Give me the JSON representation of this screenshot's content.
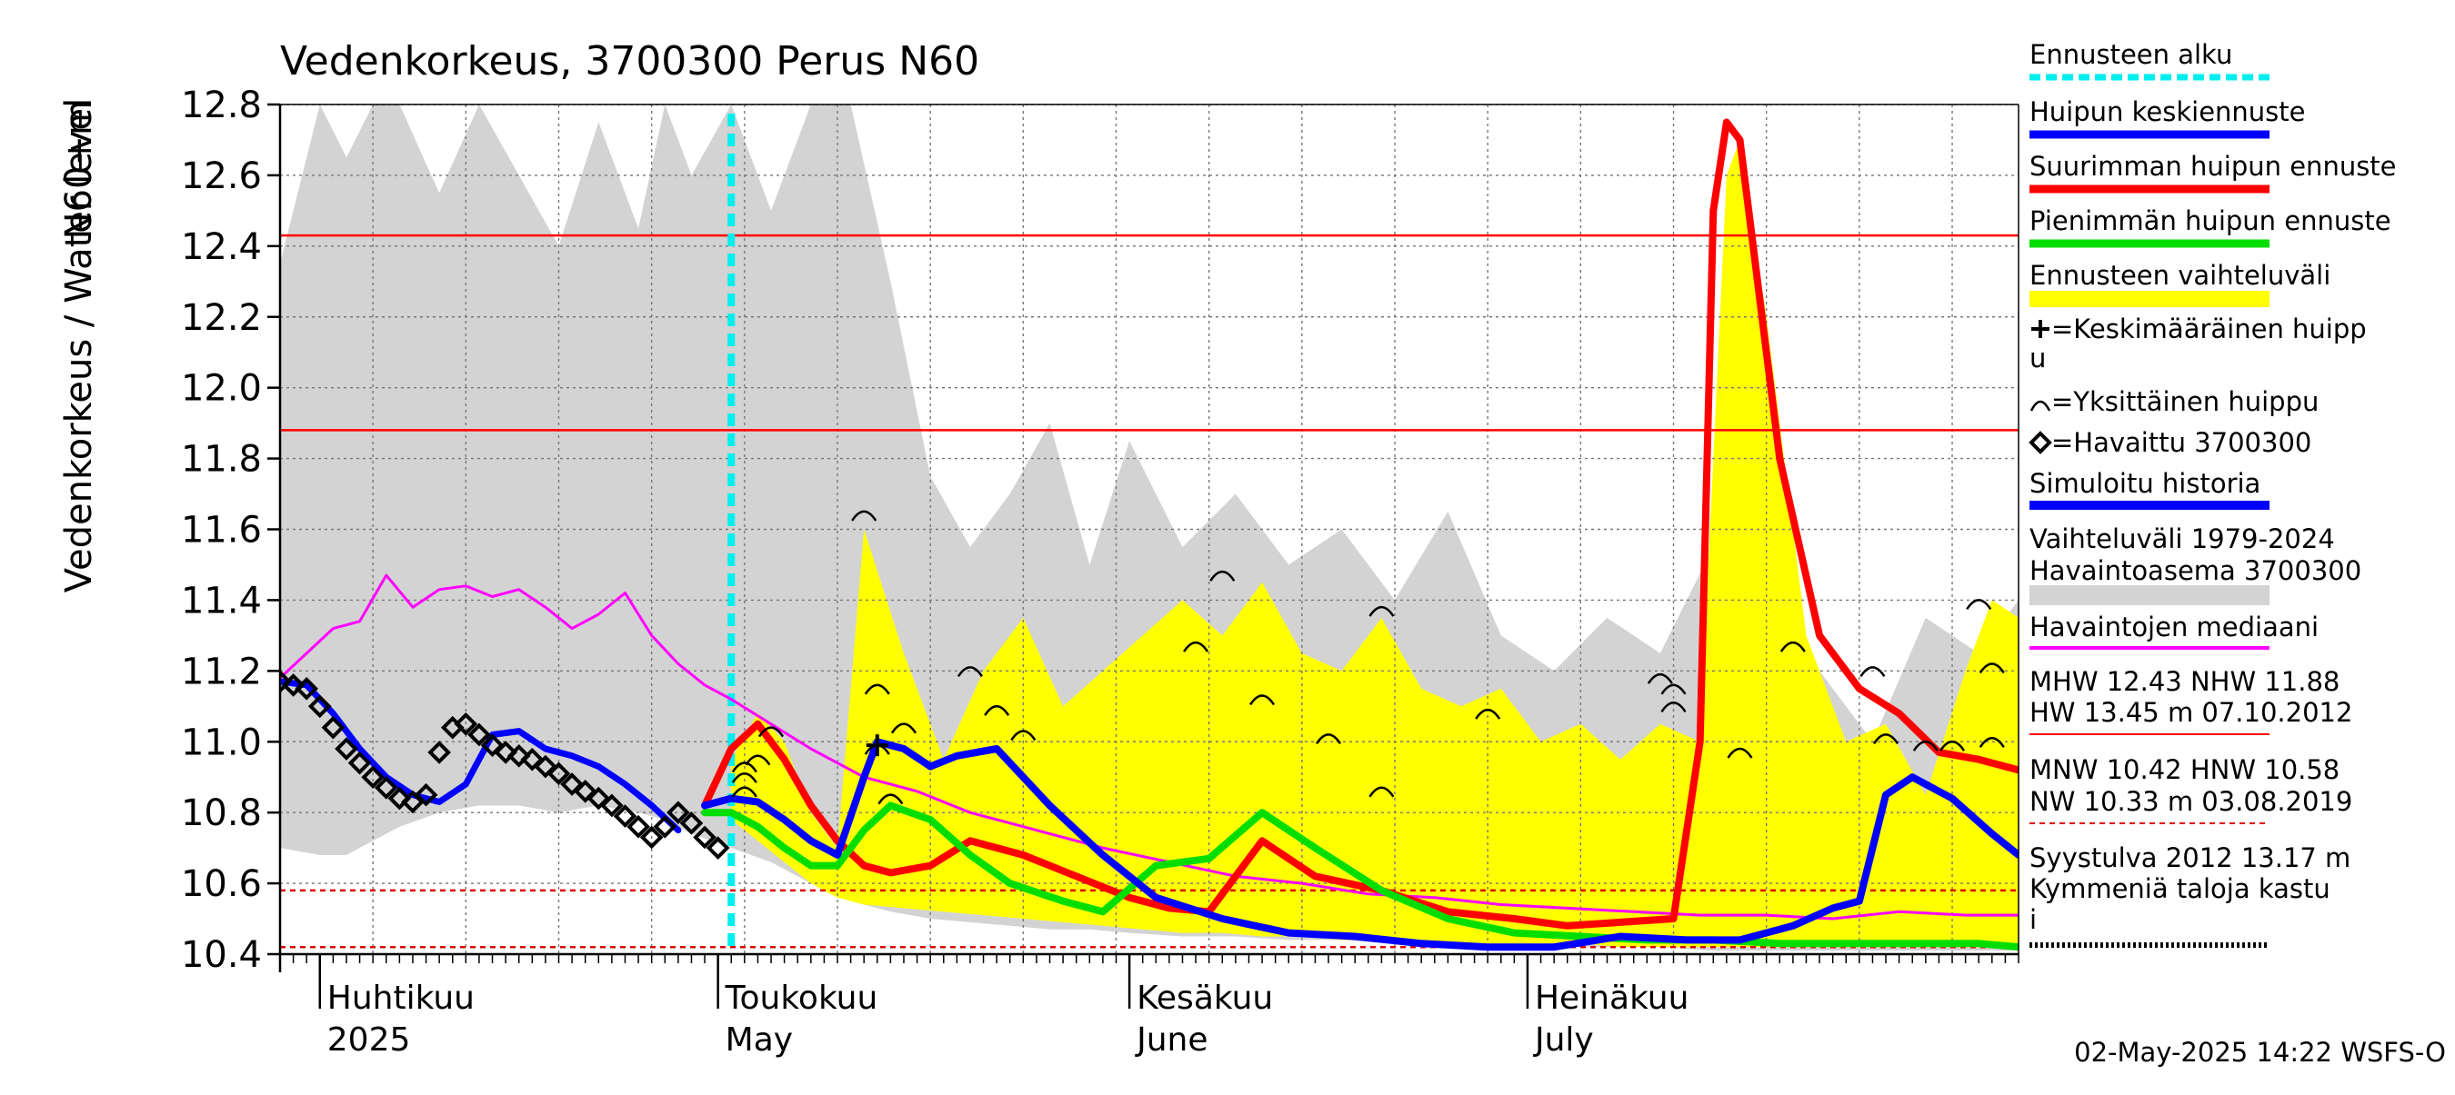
{
  "chart_data": {
    "type": "line",
    "title": "Vedenkorkeus, 3700300 Perus N60",
    "ylabel_left": "Vedenkorkeus / Water level",
    "ylabel_unit": "N60+m",
    "ylim": [
      10.4,
      12.8
    ],
    "xlim": [
      "2025-03-29",
      "2025-08-07"
    ],
    "grid": true,
    "legend_position": "right",
    "y_ticks": [
      "10.4",
      "10.6",
      "10.8",
      "11.0",
      "11.2",
      "11.4",
      "11.6",
      "11.8",
      "12.0",
      "12.2",
      "12.4",
      "12.6",
      "12.8"
    ],
    "month_labels": [
      {
        "date": "2025-04-01",
        "fi": "Huhtikuu",
        "en": "2025"
      },
      {
        "date": "2025-05-01",
        "fi": "Toukokuu",
        "en": "May"
      },
      {
        "date": "2025-06-01",
        "fi": "Kesäkuu",
        "en": "June"
      },
      {
        "date": "2025-07-01",
        "fi": "Heinäkuu",
        "en": "July"
      }
    ],
    "forecast_start": "2025-05-02",
    "reference_lines": [
      {
        "value": 12.43,
        "style": "solid",
        "color": "#ff0000"
      },
      {
        "value": 11.88,
        "style": "solid",
        "color": "#ff0000"
      },
      {
        "value": 10.58,
        "style": "dashed",
        "color": "#dd0000"
      },
      {
        "value": 10.42,
        "style": "dashed",
        "color": "#dd0000"
      }
    ],
    "series": [
      {
        "name": "Vaihteluväli 1979-2024",
        "kind": "band",
        "color": "#d3d3d3",
        "x": [
          "2025-03-29",
          "2025-04-01",
          "2025-04-03",
          "2025-04-05",
          "2025-04-07",
          "2025-04-10",
          "2025-04-13",
          "2025-04-16",
          "2025-04-19",
          "2025-04-22",
          "2025-04-25",
          "2025-04-27",
          "2025-04-29",
          "2025-05-02",
          "2025-05-05",
          "2025-05-08",
          "2025-05-11",
          "2025-05-14",
          "2025-05-17",
          "2025-05-20",
          "2025-05-23",
          "2025-05-26",
          "2025-05-29",
          "2025-06-01",
          "2025-06-05",
          "2025-06-09",
          "2025-06-13",
          "2025-06-17",
          "2025-06-21",
          "2025-06-25",
          "2025-06-29",
          "2025-07-03",
          "2025-07-07",
          "2025-07-11",
          "2025-07-15",
          "2025-07-19",
          "2025-07-23",
          "2025-07-27",
          "2025-07-31",
          "2025-08-04",
          "2025-08-07"
        ],
        "upper": [
          12.35,
          12.8,
          12.65,
          12.8,
          12.8,
          12.55,
          12.8,
          12.6,
          12.4,
          12.75,
          12.45,
          12.8,
          12.6,
          12.8,
          12.5,
          12.8,
          12.8,
          12.3,
          11.75,
          11.55,
          11.7,
          11.9,
          11.5,
          11.85,
          11.55,
          11.7,
          11.5,
          11.6,
          11.4,
          11.65,
          11.3,
          11.2,
          11.35,
          11.25,
          11.55,
          11.45,
          11.2,
          11.0,
          11.35,
          11.25,
          11.4
        ],
        "lower": [
          10.7,
          10.68,
          10.68,
          10.72,
          10.76,
          10.8,
          10.82,
          10.82,
          10.8,
          10.82,
          10.8,
          10.78,
          10.74,
          10.7,
          10.66,
          10.6,
          10.55,
          10.52,
          10.5,
          10.49,
          10.48,
          10.47,
          10.47,
          10.46,
          10.45,
          10.45,
          10.44,
          10.44,
          10.43,
          10.43,
          10.42,
          10.42,
          10.42,
          10.42,
          10.41,
          10.41,
          10.41,
          10.41,
          10.41,
          10.41,
          10.41
        ]
      },
      {
        "name": "Ennusteen vaihteluväli",
        "kind": "band",
        "color": "#ffff00",
        "x": [
          "2025-05-02",
          "2025-05-04",
          "2025-05-06",
          "2025-05-08",
          "2025-05-10",
          "2025-05-12",
          "2025-05-15",
          "2025-05-18",
          "2025-05-21",
          "2025-05-24",
          "2025-05-27",
          "2025-05-30",
          "2025-06-02",
          "2025-06-05",
          "2025-06-08",
          "2025-06-11",
          "2025-06-14",
          "2025-06-17",
          "2025-06-20",
          "2025-06-23",
          "2025-06-26",
          "2025-06-29",
          "2025-07-02",
          "2025-07-05",
          "2025-07-08",
          "2025-07-11",
          "2025-07-14",
          "2025-07-16",
          "2025-07-17",
          "2025-07-19",
          "2025-07-22",
          "2025-07-25",
          "2025-07-28",
          "2025-07-31",
          "2025-08-03",
          "2025-08-05",
          "2025-08-07"
        ],
        "upper": [
          10.95,
          11.08,
          11.0,
          10.8,
          10.7,
          11.6,
          11.25,
          10.95,
          11.2,
          11.35,
          11.1,
          11.2,
          11.3,
          11.4,
          11.3,
          11.45,
          11.25,
          11.2,
          11.35,
          11.15,
          11.1,
          11.15,
          11.0,
          11.05,
          10.95,
          11.05,
          11.0,
          12.6,
          12.7,
          12.2,
          11.3,
          11.0,
          11.05,
          10.85,
          11.2,
          11.4,
          11.35
        ],
        "lower": [
          10.78,
          10.72,
          10.66,
          10.6,
          10.56,
          10.54,
          10.53,
          10.52,
          10.51,
          10.5,
          10.49,
          10.48,
          10.47,
          10.46,
          10.46,
          10.45,
          10.45,
          10.44,
          10.44,
          10.44,
          10.43,
          10.43,
          10.43,
          10.43,
          10.42,
          10.42,
          10.42,
          10.42,
          10.42,
          10.42,
          10.42,
          10.42,
          10.42,
          10.42,
          10.42,
          10.42,
          10.42
        ]
      },
      {
        "name": "Havaintojen mediaani",
        "kind": "line",
        "color": "#ff00ff",
        "x": [
          "2025-03-29",
          "2025-03-31",
          "2025-04-02",
          "2025-04-04",
          "2025-04-06",
          "2025-04-08",
          "2025-04-10",
          "2025-04-12",
          "2025-04-14",
          "2025-04-16",
          "2025-04-18",
          "2025-04-20",
          "2025-04-22",
          "2025-04-24",
          "2025-04-26",
          "2025-04-28",
          "2025-04-30",
          "2025-05-02",
          "2025-05-05",
          "2025-05-08",
          "2025-05-12",
          "2025-05-16",
          "2025-05-20",
          "2025-05-25",
          "2025-05-30",
          "2025-06-04",
          "2025-06-09",
          "2025-06-14",
          "2025-06-19",
          "2025-06-24",
          "2025-06-29",
          "2025-07-04",
          "2025-07-09",
          "2025-07-14",
          "2025-07-19",
          "2025-07-24",
          "2025-07-29",
          "2025-08-03",
          "2025-08-07"
        ],
        "y": [
          11.18,
          11.25,
          11.32,
          11.34,
          11.47,
          11.38,
          11.43,
          11.44,
          11.41,
          11.43,
          11.38,
          11.32,
          11.36,
          11.42,
          11.3,
          11.22,
          11.16,
          11.12,
          11.05,
          10.98,
          10.9,
          10.86,
          10.8,
          10.75,
          10.7,
          10.66,
          10.62,
          10.6,
          10.57,
          10.56,
          10.54,
          10.53,
          10.52,
          10.51,
          10.51,
          10.5,
          10.52,
          10.51,
          10.51
        ]
      },
      {
        "name": "Suurimman huipun ennuste",
        "kind": "line",
        "color": "#ff0000",
        "x": [
          "2025-04-30",
          "2025-05-02",
          "2025-05-04",
          "2025-05-06",
          "2025-05-08",
          "2025-05-10",
          "2025-05-12",
          "2025-05-14",
          "2025-05-17",
          "2025-05-20",
          "2025-05-24",
          "2025-05-28",
          "2025-06-01",
          "2025-06-04",
          "2025-06-07",
          "2025-06-11",
          "2025-06-15",
          "2025-06-20",
          "2025-06-25",
          "2025-06-30",
          "2025-07-04",
          "2025-07-08",
          "2025-07-12",
          "2025-07-14",
          "2025-07-15",
          "2025-07-16",
          "2025-07-17",
          "2025-07-18",
          "2025-07-20",
          "2025-07-23",
          "2025-07-26",
          "2025-07-29",
          "2025-08-01",
          "2025-08-04",
          "2025-08-07"
        ],
        "y": [
          10.82,
          10.98,
          11.05,
          10.95,
          10.82,
          10.72,
          10.65,
          10.63,
          10.65,
          10.72,
          10.68,
          10.62,
          10.56,
          10.53,
          10.52,
          10.72,
          10.62,
          10.58,
          10.52,
          10.5,
          10.48,
          10.49,
          10.5,
          11.0,
          12.5,
          12.75,
          12.7,
          12.4,
          11.8,
          11.3,
          11.15,
          11.08,
          10.97,
          10.95,
          10.92
        ]
      },
      {
        "name": "Pienimmän huipun ennuste",
        "kind": "line",
        "color": "#00dd00",
        "x": [
          "2025-04-30",
          "2025-05-02",
          "2025-05-04",
          "2025-05-06",
          "2025-05-08",
          "2025-05-10",
          "2025-05-12",
          "2025-05-14",
          "2025-05-17",
          "2025-05-20",
          "2025-05-23",
          "2025-05-27",
          "2025-05-30",
          "2025-06-03",
          "2025-06-07",
          "2025-06-11",
          "2025-06-15",
          "2025-06-20",
          "2025-06-25",
          "2025-06-30",
          "2025-07-05",
          "2025-07-10",
          "2025-07-15",
          "2025-07-20",
          "2025-07-25",
          "2025-07-30",
          "2025-08-04",
          "2025-08-07"
        ],
        "y": [
          10.8,
          10.8,
          10.76,
          10.7,
          10.65,
          10.65,
          10.75,
          10.82,
          10.78,
          10.68,
          10.6,
          10.55,
          10.52,
          10.65,
          10.67,
          10.8,
          10.7,
          10.58,
          10.5,
          10.46,
          10.45,
          10.44,
          10.44,
          10.43,
          10.43,
          10.43,
          10.43,
          10.42
        ]
      },
      {
        "name": "Huipun keskiennuste",
        "kind": "line",
        "color": "#0000ff",
        "x": [
          "2025-04-30",
          "2025-05-02",
          "2025-05-04",
          "2025-05-06",
          "2025-05-08",
          "2025-05-10",
          "2025-05-12",
          "2025-05-13",
          "2025-05-15",
          "2025-05-17",
          "2025-05-19",
          "2025-05-22",
          "2025-05-26",
          "2025-05-30",
          "2025-06-03",
          "2025-06-08",
          "2025-06-13",
          "2025-06-18",
          "2025-06-23",
          "2025-06-28",
          "2025-07-03",
          "2025-07-08",
          "2025-07-13",
          "2025-07-17",
          "2025-07-21",
          "2025-07-24",
          "2025-07-26",
          "2025-07-28",
          "2025-07-30",
          "2025-08-02",
          "2025-08-05",
          "2025-08-07"
        ],
        "y": [
          10.82,
          10.84,
          10.83,
          10.78,
          10.72,
          10.68,
          10.9,
          11.0,
          10.98,
          10.93,
          10.96,
          10.98,
          10.82,
          10.68,
          10.56,
          10.5,
          10.46,
          10.45,
          10.43,
          10.42,
          10.42,
          10.45,
          10.44,
          10.44,
          10.48,
          10.53,
          10.55,
          10.85,
          10.9,
          10.84,
          10.74,
          10.68
        ]
      },
      {
        "name": "Simuloitu historia",
        "kind": "line",
        "color": "#0000ff",
        "x": [
          "2025-03-29",
          "2025-03-31",
          "2025-04-02",
          "2025-04-04",
          "2025-04-06",
          "2025-04-08",
          "2025-04-10",
          "2025-04-12",
          "2025-04-14",
          "2025-04-16",
          "2025-04-18",
          "2025-04-20",
          "2025-04-22",
          "2025-04-24",
          "2025-04-26",
          "2025-04-28"
        ],
        "y": [
          11.17,
          11.16,
          11.08,
          10.98,
          10.9,
          10.85,
          10.83,
          10.88,
          11.02,
          11.03,
          10.98,
          10.96,
          10.93,
          10.88,
          10.82,
          10.75
        ]
      },
      {
        "name": "Havaittu 3700300",
        "kind": "markers",
        "marker": "diamond",
        "color": "#000000",
        "x": [
          "2025-03-29",
          "2025-03-30",
          "2025-03-31",
          "2025-04-01",
          "2025-04-02",
          "2025-04-03",
          "2025-04-04",
          "2025-04-05",
          "2025-04-06",
          "2025-04-07",
          "2025-04-08",
          "2025-04-09",
          "2025-04-10",
          "2025-04-11",
          "2025-04-12",
          "2025-04-13",
          "2025-04-14",
          "2025-04-15",
          "2025-04-16",
          "2025-04-17",
          "2025-04-18",
          "2025-04-19",
          "2025-04-20",
          "2025-04-21",
          "2025-04-22",
          "2025-04-23",
          "2025-04-24",
          "2025-04-25",
          "2025-04-26",
          "2025-04-27",
          "2025-04-28",
          "2025-04-29",
          "2025-04-30",
          "2025-05-01"
        ],
        "y": [
          11.17,
          11.16,
          11.15,
          11.1,
          11.04,
          10.98,
          10.94,
          10.9,
          10.87,
          10.84,
          10.83,
          10.85,
          10.97,
          11.04,
          11.05,
          11.02,
          10.99,
          10.97,
          10.96,
          10.95,
          10.93,
          10.91,
          10.88,
          10.86,
          10.84,
          10.82,
          10.79,
          10.76,
          10.73,
          10.76,
          10.8,
          10.77,
          10.73,
          10.7
        ]
      }
    ],
    "peak_markers": {
      "name": "Yksittäinen huippu",
      "x": [
        "2025-05-03",
        "2025-05-03",
        "2025-05-03",
        "2025-05-04",
        "2025-05-05",
        "2025-05-12",
        "2025-05-13",
        "2025-05-13",
        "2025-05-14",
        "2025-05-15",
        "2025-05-20",
        "2025-05-22",
        "2025-05-24",
        "2025-06-06",
        "2025-06-08",
        "2025-06-11",
        "2025-06-16",
        "2025-06-20",
        "2025-06-20",
        "2025-06-28",
        "2025-07-11",
        "2025-07-12",
        "2025-07-12",
        "2025-07-17",
        "2025-07-21",
        "2025-07-27",
        "2025-07-28",
        "2025-07-31",
        "2025-08-02",
        "2025-08-04",
        "2025-08-05",
        "2025-08-05"
      ],
      "y": [
        10.86,
        10.9,
        10.93,
        10.95,
        11.03,
        11.64,
        11.15,
        10.98,
        10.84,
        11.04,
        11.2,
        11.09,
        11.02,
        11.27,
        11.47,
        11.12,
        11.01,
        11.37,
        10.86,
        11.08,
        11.18,
        11.1,
        11.15,
        10.97,
        11.27,
        11.2,
        11.01,
        10.99,
        10.99,
        11.39,
        11.21,
        11.0
      ]
    },
    "average_peak": {
      "name": "Keskimääräinen huippu",
      "x": [
        "2025-05-13"
      ],
      "y": [
        10.99
      ]
    }
  },
  "legend": {
    "items": [
      {
        "label": "Ennusteen alku",
        "swatch": "dashed",
        "color": "#00eeee"
      },
      {
        "label": "Huipun keskiennuste",
        "swatch": "line",
        "color": "#0000ff"
      },
      {
        "label": "Suurimman huipun ennuste",
        "swatch": "line",
        "color": "#ff0000"
      },
      {
        "label": "Pienimmän huipun ennuste",
        "swatch": "line",
        "color": "#00dd00"
      },
      {
        "label": "Ennusteen vaihteluväli",
        "swatch": "band",
        "color": "#ffff00"
      }
    ],
    "symbol_avg_line1": "=Keskimääräinen huipp",
    "symbol_avg_line2": "u",
    "symbol_peak": "=Yksittäinen huippu",
    "symbol_obs": "=Havaittu 3700300",
    "sim_history": "Simuloitu historia",
    "range_line1": "Vaihteluväli 1979-2024",
    "range_line2": " Havaintoasema 3700300",
    "median": "Havaintojen mediaani",
    "mhw_line": "MHW   12.43 NHW  11.88",
    "hw_line": "HW  13.45 m 07.10.2012",
    "mnw_line": "MNW   10.42 HNW  10.58",
    "nw_line": "NW   10.33 m 03.08.2019",
    "event_line1": "Syystulva 2012 13.17 m",
    "event_line2": "Kymmeniä taloja kastu",
    "event_line3": "i"
  },
  "footer": {
    "timestamp": "02-May-2025 14:22 WSFS-O"
  }
}
